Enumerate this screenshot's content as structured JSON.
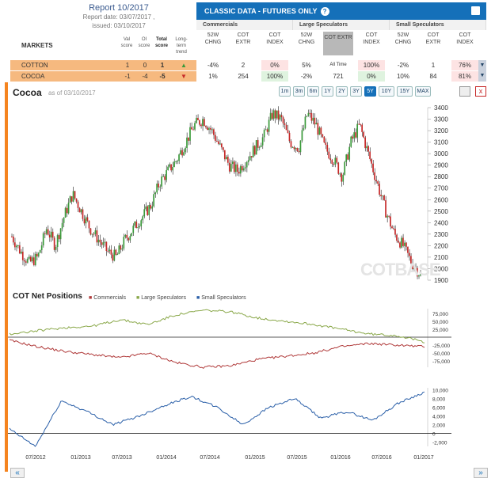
{
  "report": {
    "title": "Report 10/2017",
    "report_date": "Report date: 03/07/2017 ,",
    "issued": "issued: 03/10/2017"
  },
  "header": {
    "title": "CLASSIC DATA - FUTURES ONLY",
    "help": "?"
  },
  "groups": {
    "commercials": "Commercials",
    "large": "Large Speculators",
    "small": "Small Speculators"
  },
  "cols": {
    "markets": "MARKETS",
    "val_score": "Val score",
    "oi_score": "OI score",
    "total_score": "Total score",
    "trend": "Long-term trend",
    "w52": "52W CHNG",
    "extr": "COT EXTR",
    "index": "COT INDEX",
    "all_time": "All Time"
  },
  "rows": [
    {
      "name": "COTTON",
      "val": "1",
      "oi": "0",
      "total": "1",
      "trend": "up",
      "c_w52": "-4%",
      "c_extr": "2",
      "c_idx": "0%",
      "l_w52": "5%",
      "l_extr": "All Time",
      "l_idx": "100%",
      "s_w52": "-2%",
      "s_extr": "1",
      "s_idx": "76%"
    },
    {
      "name": "COCOA",
      "val": "-1",
      "oi": "-4",
      "total": "-5",
      "trend": "down",
      "c_w52": "1%",
      "c_extr": "254",
      "c_idx": "100%",
      "l_w52": "-2%",
      "l_extr": "721",
      "l_idx": "0%",
      "s_w52": "10%",
      "s_extr": "84",
      "s_idx": "81%"
    }
  ],
  "chart": {
    "title": "Cocoa",
    "asof": "as of 03/10/2017",
    "watermark": "COTBASE"
  },
  "ranges": [
    "1m",
    "3m",
    "6m",
    "1Y",
    "2Y",
    "3Y",
    "5Y",
    "10Y",
    "15Y",
    "MAX"
  ],
  "active_range": "5Y",
  "cot": {
    "title": "COT Net Positions",
    "legend": [
      "Commercials",
      "Large Speculators",
      "Small Speculators"
    ]
  },
  "colors": {
    "commercials": "#b03a3a",
    "large": "#8aa84a",
    "small": "#2a5fa8",
    "up": "#3a9a3a",
    "down": "#c62828",
    "accent": "#1570b9"
  },
  "nav": {
    "prev": "«",
    "next": "»"
  },
  "chart_data": [
    {
      "type": "candlestick",
      "title": "Cocoa",
      "ylim": [
        1900,
        3400
      ],
      "y_ticks": [
        1900,
        2000,
        2100,
        2200,
        2300,
        2400,
        2500,
        2600,
        2700,
        2800,
        2900,
        3000,
        3100,
        3200,
        3300,
        3400
      ],
      "closes": [
        2280,
        2150,
        2050,
        2100,
        2350,
        2200,
        2450,
        2650,
        2500,
        2350,
        2250,
        2150,
        2100,
        2250,
        2350,
        2450,
        2550,
        2750,
        2850,
        2950,
        3100,
        3250,
        3300,
        3200,
        3050,
        2900,
        2850,
        2950,
        3050,
        3150,
        3350,
        3300,
        3100,
        3050,
        3350,
        3250,
        3050,
        2950,
        2800,
        3100,
        3250,
        3000,
        2750,
        2500,
        2300,
        2200,
        2050,
        1950
      ]
    },
    {
      "type": "line",
      "title": "COT Net Positions",
      "y_ticks": [
        75000,
        50000,
        25000,
        -25000,
        -50000,
        -75000
      ],
      "series": [
        {
          "name": "Commercials",
          "values": [
            -10000,
            -30000,
            -45000,
            -55000,
            -65000,
            -50000,
            -80000,
            -95000,
            -90000,
            -70000,
            -60000,
            -50000,
            -30000,
            -20000,
            -25000,
            -30000
          ]
        },
        {
          "name": "Large Speculators",
          "values": [
            10000,
            20000,
            30000,
            35000,
            55000,
            40000,
            70000,
            85000,
            80000,
            60000,
            50000,
            40000,
            25000,
            10000,
            5000,
            -15000
          ]
        }
      ]
    },
    {
      "type": "line",
      "y_ticks": [
        10000,
        8000,
        6000,
        4000,
        2000,
        0,
        -2000
      ],
      "series": [
        {
          "name": "Small Speculators",
          "values": [
            1000,
            -3000,
            7500,
            5000,
            2000,
            4000,
            6500,
            8500,
            6000,
            2000,
            6000,
            8000,
            3500,
            5000,
            3000,
            7000,
            9500
          ]
        }
      ]
    }
  ],
  "x_ticks": [
    "07/2012",
    "01/2013",
    "07/2013",
    "01/2014",
    "07/2014",
    "01/2015",
    "07/2015",
    "01/2016",
    "07/2016",
    "01/2017"
  ]
}
